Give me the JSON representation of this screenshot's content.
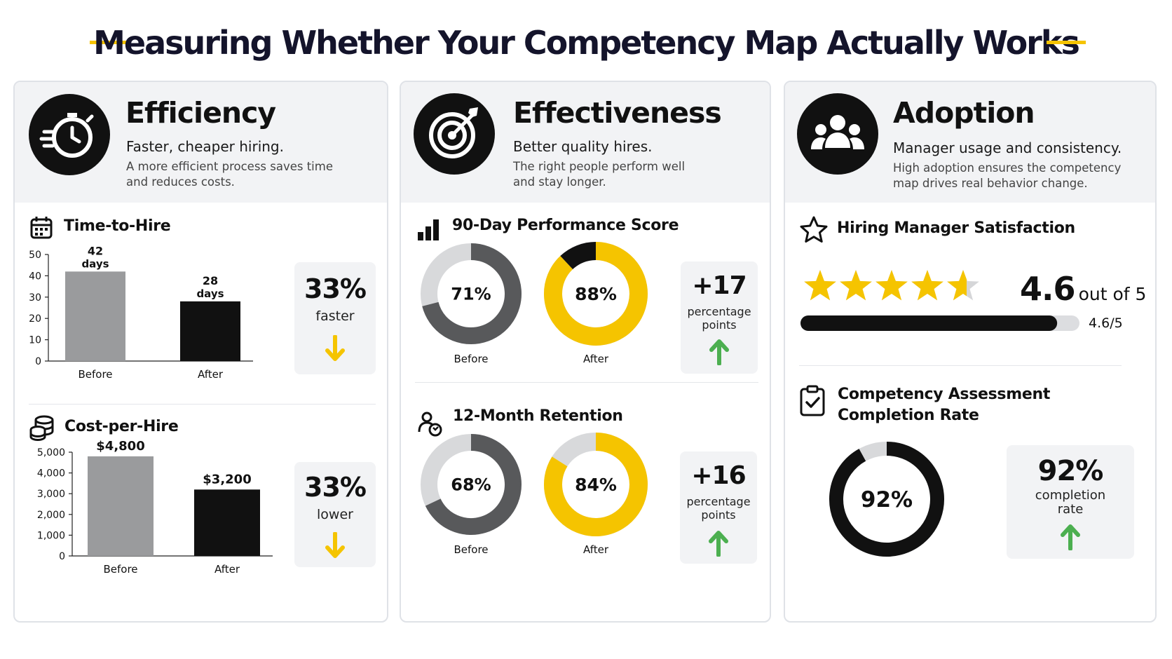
{
  "title": "Measuring Whether Your Competency Map Actually Works",
  "colors": {
    "accent": "#F5C400",
    "dark": "#111111",
    "gray": "#9A9B9D",
    "donut_before": "#58595b",
    "track": "#d8d9db",
    "up": "#4caf50"
  },
  "efficiency": {
    "title": "Efficiency",
    "subtitle": "Faster, cheaper hiring.",
    "description": "A more efficient process saves time and reduces costs.",
    "icon": "stopwatch-icon",
    "time_to_hire": {
      "title": "Time-to-Hire",
      "icon": "calendar-icon",
      "kpi_value": "33%",
      "kpi_label": "faster",
      "kpi_direction": "down"
    },
    "cost_per_hire": {
      "title": "Cost-per-Hire",
      "icon": "coins-icon",
      "kpi_value": "33%",
      "kpi_label": "lower",
      "kpi_direction": "down"
    }
  },
  "effectiveness": {
    "title": "Effectiveness",
    "subtitle": "Better quality hires.",
    "description": "The right people perform well and stay longer.",
    "icon": "target-icon",
    "performance": {
      "title": "90-Day Performance Score",
      "icon": "bar-chart-icon",
      "kpi_value": "+17",
      "kpi_label": "percentage points",
      "kpi_direction": "up"
    },
    "retention": {
      "title": "12-Month Retention",
      "icon": "people-cycle-icon",
      "kpi_value": "+16",
      "kpi_label": "percentage points",
      "kpi_direction": "up"
    }
  },
  "adoption": {
    "title": "Adoption",
    "subtitle": "Manager usage and consistency.",
    "description": "High adoption ensures the competency map drives real behavior change.",
    "icon": "group-icon",
    "satisfaction": {
      "title": "Hiring Manager Satisfaction",
      "icon": "star-outline-icon",
      "score_value": "4.6",
      "score_suffix": "out of 5",
      "bar_label": "4.6/5"
    },
    "completion": {
      "title_line1": "Competency Assessment",
      "title_line2": "Completion Rate",
      "icon": "clipboard-check-icon",
      "kpi_value": "92%",
      "kpi_label": "completion rate",
      "kpi_direction": "up"
    }
  },
  "chart_data": [
    {
      "type": "bar",
      "id": "time-to-hire",
      "categories": [
        "Before",
        "After"
      ],
      "values": [
        42,
        28
      ],
      "data_labels": [
        "42 days",
        "28 days"
      ],
      "ylim": [
        0,
        50
      ],
      "yticks": [
        "0",
        "10",
        "20",
        "30",
        "40",
        "50"
      ],
      "colors": [
        "#9A9B9D",
        "#111111"
      ]
    },
    {
      "type": "bar",
      "id": "cost-per-hire",
      "categories": [
        "Before",
        "After"
      ],
      "values": [
        4800,
        3200
      ],
      "data_labels": [
        "$4,800",
        "$3,200"
      ],
      "ylim": [
        0,
        5000
      ],
      "yticks": [
        "0",
        "1,000",
        "2,000",
        "3,000",
        "4,000",
        "5,000"
      ],
      "colors": [
        "#9A9B9D",
        "#111111"
      ]
    },
    {
      "type": "pie",
      "id": "performance",
      "categories": [
        "Before",
        "After"
      ],
      "values": [
        71,
        88
      ],
      "data_labels": [
        "71%",
        "88%"
      ]
    },
    {
      "type": "pie",
      "id": "retention",
      "categories": [
        "Before",
        "After"
      ],
      "values": [
        68,
        84
      ],
      "data_labels": [
        "68%",
        "84%"
      ]
    },
    {
      "type": "bar",
      "id": "satisfaction",
      "values": [
        4.6
      ],
      "max": 5,
      "stars": 4.6
    },
    {
      "type": "pie",
      "id": "completion",
      "values": [
        92
      ],
      "data_labels": [
        "92%"
      ]
    }
  ]
}
